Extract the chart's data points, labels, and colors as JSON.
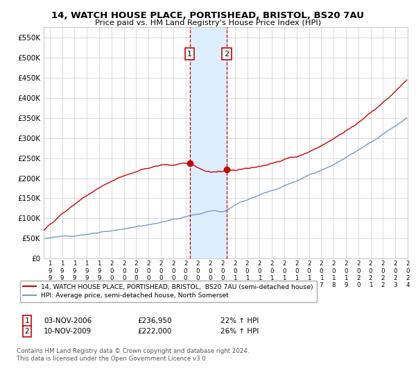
{
  "title_line1": "14, WATCH HOUSE PLACE, PORTISHEAD, BRISTOL, BS20 7AU",
  "title_line2": "Price paid vs. HM Land Registry's House Price Index (HPI)",
  "legend_line1": "14, WATCH HOUSE PLACE, PORTISHEAD, BRISTOL,  BS20 7AU (semi-detached house)",
  "legend_line2": "HPI: Average price, semi-detached house, North Somerset",
  "sale1_date": "03-NOV-2006",
  "sale1_price": 236950,
  "sale1_pct": "22% ↑ HPI",
  "sale2_date": "10-NOV-2009",
  "sale2_price": 222000,
  "sale2_pct": "26% ↑ HPI",
  "footnote": "Contains HM Land Registry data © Crown copyright and database right 2024.\nThis data is licensed under the Open Government Licence v3.0.",
  "red_color": "#cc0000",
  "blue_color": "#7799cc",
  "shade_color": "#ddeeff",
  "grid_color": "#cccccc",
  "ylim": [
    0,
    575000
  ],
  "yticks": [
    0,
    50000,
    100000,
    150000,
    200000,
    250000,
    300000,
    350000,
    400000,
    450000,
    500000,
    550000
  ]
}
